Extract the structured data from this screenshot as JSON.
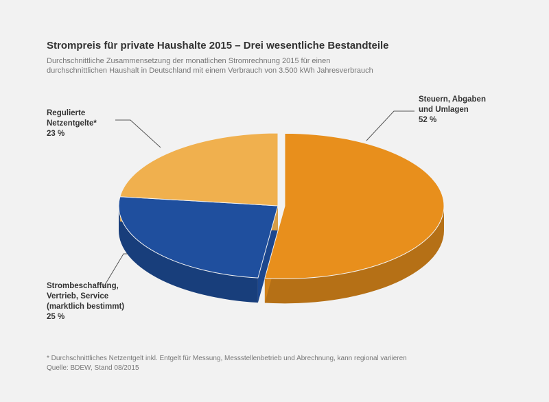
{
  "chart_data": {
    "type": "pie",
    "title": "Strompreis für private Haushalte 2015 – Drei wesentliche Bestandteile",
    "subtitle": "Durchschnittliche Zusammensetzung der monatlichen Stromrechnung 2015 für einen\ndurchschnittlichen Haushalt in Deutschland mit einem Verbrauch von 3.500 kWh Jahresverbrauch",
    "categories": [
      "Steuern, Abgaben\nund Umlagen",
      "Strombeschaffung,\nVertrieb, Service\n(marktlich bestimmt)",
      "Regulierte\nNetzentgelte*"
    ],
    "values": [
      52,
      25,
      23
    ],
    "value_labels": [
      "52 %",
      "25 %",
      "23 %"
    ],
    "colors": [
      "#e88f1c",
      "#1f4f9e",
      "#f0b04e"
    ],
    "footnote": "* Durchschnittliches Netzentgelt inkl. Entgelt für Messung, Messstellenbetrieb und Abrechnung, kann regional variieren",
    "source": "Quelle: BDEW, Stand 08/2015"
  }
}
